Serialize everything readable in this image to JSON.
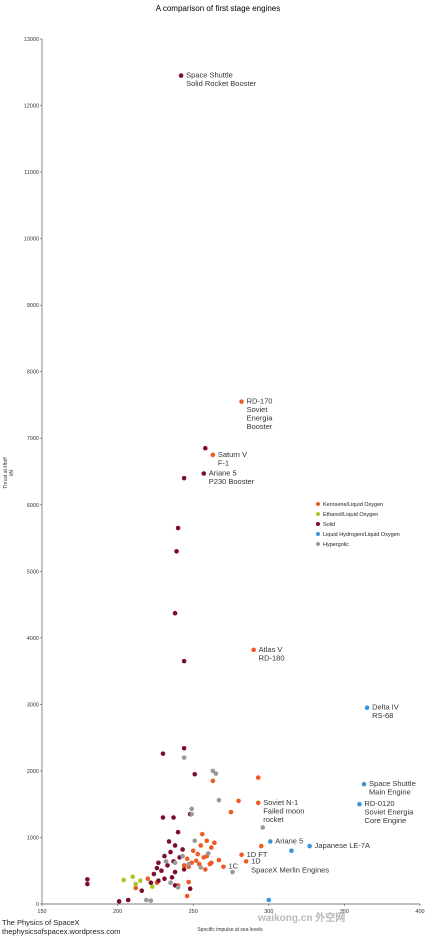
{
  "chart_data": {
    "type": "scatter",
    "title": "A comparison of first stage engines",
    "xlabel": "Specific impulse at sea levels",
    "ylabel_lines": [
      "Thrust at liftoff",
      "kN"
    ],
    "xlim": [
      150,
      400
    ],
    "ylim": [
      0,
      13000
    ],
    "xticks": [
      150,
      200,
      250,
      300,
      350,
      400
    ],
    "yticks": [
      0,
      1000,
      2000,
      3000,
      4000,
      5000,
      6000,
      7000,
      8000,
      9000,
      10000,
      11000,
      12000,
      13000
    ],
    "grid": false,
    "legend_position": "right-middle",
    "series": [
      {
        "name": "Kerosene/Liquid Oxygen",
        "color": "#f05a22",
        "points": [
          [
            282,
            7550
          ],
          [
            263,
            6750
          ],
          [
            263,
            1850
          ],
          [
            293,
            1900
          ],
          [
            290,
            3820
          ],
          [
            293,
            1520
          ],
          [
            275,
            1380
          ],
          [
            280,
            1550
          ],
          [
            256,
            1050
          ],
          [
            259,
            950
          ],
          [
            255,
            880
          ],
          [
            262,
            850
          ],
          [
            264,
            920
          ],
          [
            250,
            800
          ],
          [
            253,
            750
          ],
          [
            257,
            700
          ],
          [
            246,
            680
          ],
          [
            252,
            650
          ],
          [
            259,
            720
          ],
          [
            249,
            620
          ],
          [
            244,
            580
          ],
          [
            247,
            560
          ],
          [
            254,
            600
          ],
          [
            261,
            600
          ],
          [
            282,
            740
          ],
          [
            285,
            640
          ],
          [
            270,
            560
          ],
          [
            295,
            870
          ],
          [
            226,
            320
          ],
          [
            220,
            380
          ],
          [
            212,
            240
          ],
          [
            240,
            280
          ],
          [
            247,
            330
          ],
          [
            246,
            120
          ],
          [
            258,
            520
          ],
          [
            262,
            620
          ],
          [
            267,
            660
          ]
        ]
      },
      {
        "name": "Ethanol/Liquid Oxygen",
        "color": "#a8c62a",
        "points": [
          [
            210,
            410
          ],
          [
            215,
            350
          ],
          [
            204,
            360
          ],
          [
            212,
            300
          ],
          [
            223,
            260
          ]
        ]
      },
      {
        "name": "Solid",
        "color": "#7b0d2d",
        "points": [
          [
            242,
            12450
          ],
          [
            258,
            6850
          ],
          [
            244,
            6400
          ],
          [
            257,
            6470
          ],
          [
            240,
            5650
          ],
          [
            239,
            5300
          ],
          [
            238,
            4370
          ],
          [
            244,
            3650
          ],
          [
            244,
            2340
          ],
          [
            230,
            2260
          ],
          [
            251,
            1950
          ],
          [
            230,
            1300
          ],
          [
            237,
            1300
          ],
          [
            248,
            1350
          ],
          [
            240,
            1080
          ],
          [
            234,
            940
          ],
          [
            238,
            880
          ],
          [
            243,
            820
          ],
          [
            235,
            780
          ],
          [
            231,
            720
          ],
          [
            241,
            700
          ],
          [
            237,
            640
          ],
          [
            227,
            620
          ],
          [
            233,
            580
          ],
          [
            226,
            540
          ],
          [
            244,
            520
          ],
          [
            229,
            500
          ],
          [
            238,
            480
          ],
          [
            224,
            450
          ],
          [
            236,
            400
          ],
          [
            231,
            380
          ],
          [
            227,
            350
          ],
          [
            222,
            320
          ],
          [
            180,
            370
          ],
          [
            180,
            300
          ],
          [
            216,
            200
          ],
          [
            201,
            40
          ],
          [
            207,
            60
          ],
          [
            238,
            280
          ],
          [
            248,
            230
          ]
        ]
      },
      {
        "name": "Liquid Hydrogen/Liquid Oxygen",
        "color": "#3d95d9",
        "points": [
          [
            365,
            2950
          ],
          [
            363,
            1800
          ],
          [
            360,
            1500
          ],
          [
            301,
            940
          ],
          [
            327,
            870
          ],
          [
            315,
            800
          ],
          [
            300,
            60
          ]
        ]
      },
      {
        "name": "Hypergolic",
        "color": "#999999",
        "points": [
          [
            244,
            2200
          ],
          [
            263,
            2000
          ],
          [
            265,
            1960
          ],
          [
            267,
            1560
          ],
          [
            249,
            1430
          ],
          [
            249,
            1350
          ],
          [
            296,
            1150
          ],
          [
            251,
            950
          ],
          [
            260,
            760
          ],
          [
            243,
            720
          ],
          [
            247,
            600
          ],
          [
            232,
            640
          ],
          [
            238,
            620
          ],
          [
            255,
            550
          ],
          [
            276,
            480
          ],
          [
            235,
            320
          ],
          [
            240,
            250
          ],
          [
            219,
            60
          ],
          [
            222,
            50
          ]
        ]
      }
    ],
    "annotations": [
      {
        "lines": [
          "Space Shuttle",
          "Solid Rocket Booster"
        ],
        "x": 242,
        "y": 12450
      },
      {
        "lines": [
          "RD-170",
          "Soviet",
          "Energia",
          "Booster"
        ],
        "x": 282,
        "y": 7550
      },
      {
        "lines": [
          "Saturn V",
          "F-1"
        ],
        "x": 263,
        "y": 6750
      },
      {
        "lines": [
          "Ariane 5",
          "P230 Booster"
        ],
        "x": 257,
        "y": 6470
      },
      {
        "lines": [
          "Atlas V",
          "RD-180"
        ],
        "x": 290,
        "y": 3820
      },
      {
        "lines": [
          "Delta IV",
          "RS-68"
        ],
        "x": 365,
        "y": 2950
      },
      {
        "lines": [
          "Space Shuttle",
          "Main Engine"
        ],
        "x": 363,
        "y": 1800
      },
      {
        "lines": [
          "Soviet N-1",
          "Failed moon",
          "rocket"
        ],
        "x": 293,
        "y": 1520
      },
      {
        "lines": [
          "RD-0120",
          "Soviet Energia",
          "Core Engine"
        ],
        "x": 360,
        "y": 1500
      },
      {
        "lines": [
          "Ariane 5"
        ],
        "x": 301,
        "y": 940
      },
      {
        "lines": [
          "Japanese LE-7A"
        ],
        "x": 327,
        "y": 870
      },
      {
        "lines": [
          "1D FT"
        ],
        "x": 282,
        "y": 740
      },
      {
        "lines": [
          "1D"
        ],
        "x": 285,
        "y": 640
      },
      {
        "lines": [
          "1C"
        ],
        "x": 270,
        "y": 560
      },
      {
        "lines": [
          "SpaceX Merlin Engines"
        ],
        "x": 285,
        "y": 500
      }
    ]
  },
  "credits": {
    "line1": "The Physics of SpaceX",
    "line2": "thephysicsofspacex.wordpress.com"
  },
  "watermark": "waikong.cn 外空网"
}
